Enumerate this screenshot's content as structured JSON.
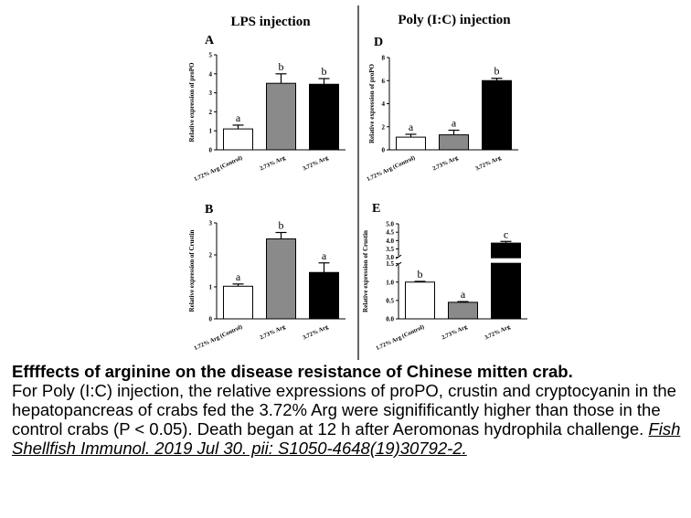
{
  "figure": {
    "groups": [
      {
        "heading": "LPS injection"
      },
      {
        "heading": "Poly (I:C) injection"
      }
    ]
  },
  "chart_data": [
    {
      "type": "bar",
      "panel": "A",
      "group": "LPS injection",
      "categories": [
        "1.72% Arg (Control)",
        "2.73% Arg",
        "3.72% Arg"
      ],
      "values": [
        1.1,
        3.5,
        3.45
      ],
      "errors": [
        0.2,
        0.5,
        0.3
      ],
      "letters": [
        "a",
        "b",
        "b"
      ],
      "colors": [
        "#ffffff",
        "#8a8a8a",
        "#000000"
      ],
      "ylabel": "Relative expression of proPO",
      "yticks": [
        "0",
        "1",
        "2",
        "3",
        "4",
        "5"
      ],
      "ylim": [
        0,
        5
      ]
    },
    {
      "type": "bar",
      "panel": "D",
      "group": "Poly (I:C) injection",
      "categories": [
        "1.72% Arg (Control)",
        "2.73% Arg",
        "3.72% Arg"
      ],
      "values": [
        1.1,
        1.3,
        6.0
      ],
      "errors": [
        0.25,
        0.4,
        0.2
      ],
      "letters": [
        "a",
        "a",
        "b"
      ],
      "colors": [
        "#ffffff",
        "#8a8a8a",
        "#000000"
      ],
      "ylabel": "Relative expression of proPO",
      "yticks": [
        "0",
        "2",
        "4",
        "6",
        "8"
      ],
      "ylim": [
        0,
        8
      ]
    },
    {
      "type": "bar",
      "panel": "B",
      "group": "LPS injection",
      "categories": [
        "1.72% Arg (Control)",
        "2.73% Arg",
        "3.72% Arg"
      ],
      "values": [
        1.02,
        2.5,
        1.45
      ],
      "errors": [
        0.07,
        0.2,
        0.3
      ],
      "letters": [
        "a",
        "b",
        "a"
      ],
      "colors": [
        "#ffffff",
        "#8a8a8a",
        "#000000"
      ],
      "ylabel": "Relative expression of Crustin",
      "yticks": [
        "0",
        "1",
        "2",
        "3"
      ],
      "ylim": [
        0,
        3
      ]
    },
    {
      "type": "bar",
      "panel": "E",
      "group": "Poly (I:C) injection",
      "categories": [
        "1.72% Arg (Control)",
        "2.73% Arg",
        "3.72% Arg"
      ],
      "values": [
        1.0,
        0.45,
        3.85
      ],
      "errors": [
        0.02,
        0.02,
        0.1
      ],
      "letters": [
        "b",
        "a",
        "c"
      ],
      "colors": [
        "#ffffff",
        "#8a8a8a",
        "#000000"
      ],
      "ylabel": "Relative expression of Crustin",
      "yticks": [
        "0.0",
        "0.5",
        "1.0",
        "1.5",
        "3.0",
        "3.5",
        "4.0",
        "4.5",
        "5.0"
      ],
      "ylim": [
        0,
        5
      ],
      "axis_break": [
        1.5,
        3.0
      ]
    }
  ],
  "caption": {
    "title": "Effffects of arginine on the disease resistance of Chinese mitten crab.",
    "body": "For Poly (I:C) injection, the relative expressions of proPO, crustin and cryptocyanin in the hepatopancreas of crabs fed the 3.72% Arg were signifificantly higher than those in the control crabs (P < 0.05). Death began at 12 h after Aeromonas hydrophila challenge.",
    "citation": "Fish Shellfish Immunol. 2019 Jul 30. pii: S1050-4648(19)30792-2."
  }
}
